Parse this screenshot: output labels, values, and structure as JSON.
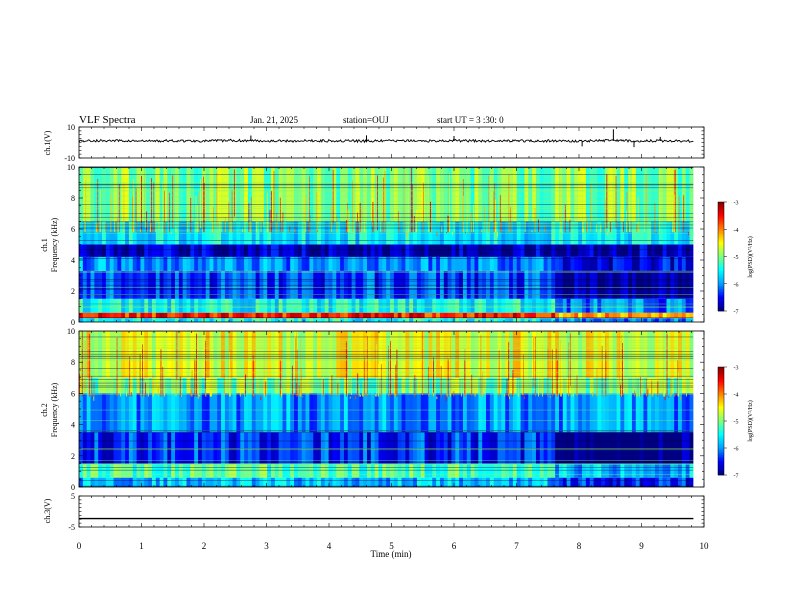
{
  "header": {
    "title": "VLF Spectra",
    "date": "Jan. 21, 2025",
    "station": "station=OUJ",
    "start": "start UT =  3 :30: 0"
  },
  "chart_data": [
    {
      "type": "line",
      "name": "ch1-waveform",
      "ylabel": "ch.1(V)",
      "ylim": [
        -10,
        10
      ],
      "yticks": [
        "10",
        "-10"
      ],
      "xlim": [
        0,
        10
      ],
      "x": [
        0,
        0.5,
        1,
        1.5,
        2,
        2.5,
        3,
        3.5,
        4,
        4.5,
        5,
        5.5,
        6,
        6.5,
        7,
        7.5,
        8,
        8.5,
        9,
        9.5,
        9.83
      ],
      "series": [
        {
          "values": [
            1.0,
            1.2,
            0.9,
            1.1,
            1.0,
            1.3,
            1.1,
            1.0,
            1.2,
            0.9,
            1.1,
            1.0,
            1.2,
            1.0,
            1.1,
            1.0,
            0.9,
            1.4,
            1.0,
            1.1,
            1.0
          ]
        }
      ]
    },
    {
      "type": "heatmap",
      "name": "ch1-spectrogram",
      "ylabel": "ch.1\nFrequency (kHz)",
      "ylabel_lines": [
        "ch.1",
        "Frequency (kHz)"
      ],
      "ylim": [
        0,
        10
      ],
      "yticks": [
        "0",
        "2",
        "4",
        "6",
        "8",
        "10"
      ],
      "xlim": [
        0,
        10
      ],
      "data_end_min": 9.83,
      "bands_khz": [
        {
          "range": [
            0,
            0.25
          ],
          "level": -5.5
        },
        {
          "range": [
            0.25,
            0.6
          ],
          "level": -3.6
        },
        {
          "range": [
            0.6,
            1.5
          ],
          "level": -5.5
        },
        {
          "range": [
            1.5,
            3.3
          ],
          "level": -6.3
        },
        {
          "range": [
            3.3,
            4.2
          ],
          "level": -6.0
        },
        {
          "range": [
            4.2,
            5.0
          ],
          "level": -6.8
        },
        {
          "range": [
            5.0,
            6.5
          ],
          "level": -5.6
        },
        {
          "range": [
            6.5,
            10
          ],
          "level": -5.0
        }
      ],
      "colorbar": {
        "label": "log(PSD)(V²/Hz)",
        "min": -7,
        "max": -3,
        "ticks": [
          "-3",
          "-4",
          "-5",
          "-6",
          "-7"
        ]
      }
    },
    {
      "type": "heatmap",
      "name": "ch2-spectrogram",
      "ylabel": "ch.2\nFrequency (kHz)",
      "ylabel_lines": [
        "ch.2",
        "Frequency (kHz)"
      ],
      "ylim": [
        0,
        10
      ],
      "yticks": [
        "0",
        "2",
        "4",
        "6",
        "8",
        "10"
      ],
      "xlim": [
        0,
        10
      ],
      "data_end_min": 9.83,
      "bands_khz": [
        {
          "range": [
            0,
            0.6
          ],
          "level": -5.8
        },
        {
          "range": [
            0.6,
            1.5
          ],
          "level": -5.2
        },
        {
          "range": [
            1.5,
            3.5
          ],
          "level": -6.4
        },
        {
          "range": [
            3.5,
            6.0
          ],
          "level": -6.0
        },
        {
          "range": [
            6.0,
            7.0
          ],
          "level": -5.0
        },
        {
          "range": [
            7.0,
            10
          ],
          "level": -4.6
        }
      ],
      "colorbar": {
        "label": "log(PSD)(V²/Hz)",
        "min": -7,
        "max": -3,
        "ticks": [
          "-3",
          "-4",
          "-5",
          "-6",
          "-7"
        ]
      }
    },
    {
      "type": "line",
      "name": "ch3-waveform",
      "ylabel": "ch.3(V)",
      "ylim": [
        -5,
        5
      ],
      "yticks": [
        "5",
        "-5"
      ],
      "xlim": [
        0,
        10
      ],
      "x": [
        0,
        9.83
      ],
      "series": [
        {
          "values": [
            -2.3,
            -2.3
          ]
        }
      ]
    }
  ],
  "xaxis": {
    "label": "Time (min)",
    "ticks": [
      "0",
      "1",
      "2",
      "3",
      "4",
      "5",
      "6",
      "7",
      "8",
      "9",
      "10"
    ]
  },
  "colors": {
    "colormap": [
      "#000080",
      "#0000ff",
      "#00a0ff",
      "#00ffff",
      "#80ff80",
      "#ffff00",
      "#ff8000",
      "#ff0000",
      "#800000"
    ]
  }
}
